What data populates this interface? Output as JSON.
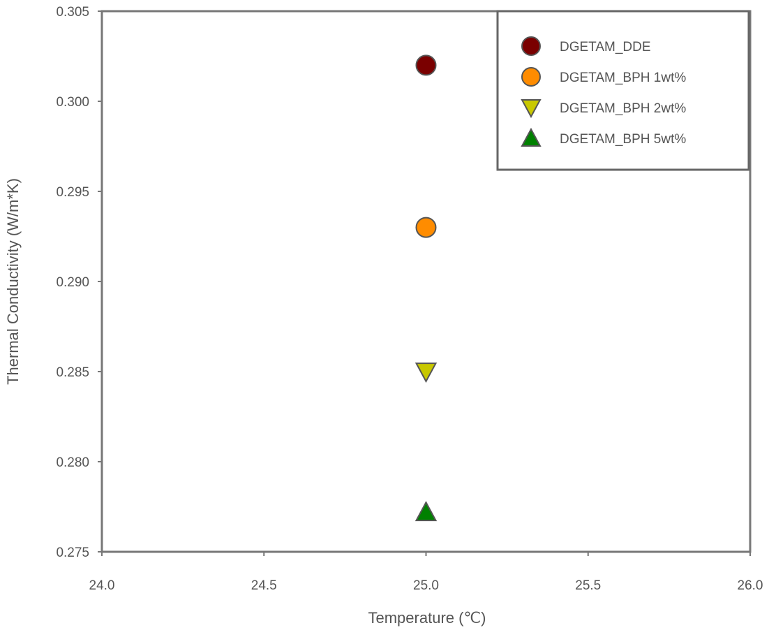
{
  "chart_data": {
    "type": "scatter",
    "title": "",
    "xlabel": "Temperature (℃)",
    "ylabel": "Thermal Conductivity (W/m*K)",
    "xlim": [
      24.0,
      26.0
    ],
    "ylim": [
      0.275,
      0.305
    ],
    "xticks": [
      "24.0",
      "24.5",
      "25.0",
      "25.5",
      "26.0"
    ],
    "yticks": [
      "0.275",
      "0.280",
      "0.285",
      "0.290",
      "0.295",
      "0.300",
      "0.305"
    ],
    "grid": false,
    "legend_position": "top-right",
    "series": [
      {
        "name": "DGETAM_DDE",
        "marker": "circle",
        "color": "#7a0000",
        "x": [
          25.0
        ],
        "y": [
          0.302
        ]
      },
      {
        "name": "DGETAM_BPH 1wt%",
        "marker": "circle",
        "color": "#ff8c00",
        "x": [
          25.0
        ],
        "y": [
          0.293
        ]
      },
      {
        "name": "DGETAM_BPH 2wt%",
        "marker": "triangle-down",
        "color": "#c8c800",
        "x": [
          25.0
        ],
        "y": [
          0.285
        ]
      },
      {
        "name": "DGETAM_BPH 5wt%",
        "marker": "triangle-up",
        "color": "#008000",
        "x": [
          25.0
        ],
        "y": [
          0.2772
        ]
      }
    ]
  }
}
